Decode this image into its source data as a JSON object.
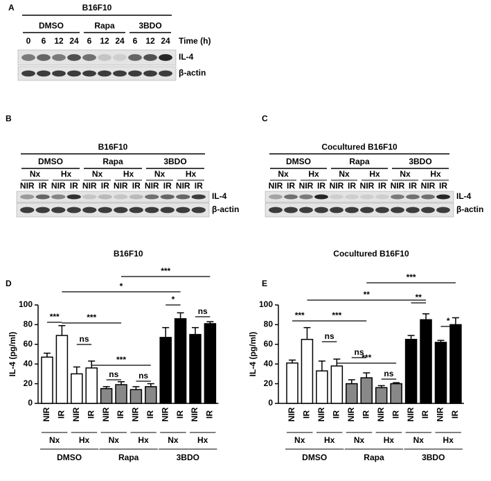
{
  "blots": [
    {
      "panel": "A",
      "title": "B16F10",
      "treatments": [
        "DMSO",
        "Rapa",
        "3BDO"
      ],
      "lanes": [
        "0",
        "6",
        "12",
        "24",
        "6",
        "12",
        "24",
        "6",
        "12",
        "24"
      ],
      "lane_axis": "Time (h)",
      "rows": [
        "IL-4",
        "β-actin"
      ]
    },
    {
      "panel": "B",
      "title": "B16F10",
      "treatments": [
        "DMSO",
        "Rapa",
        "3BDO"
      ],
      "conditions": [
        "Nx",
        "Hx",
        "Nx",
        "Hx",
        "Nx",
        "Hx"
      ],
      "lanes": [
        "NIR",
        "IR",
        "NIR",
        "IR",
        "NIR",
        "IR",
        "NIR",
        "IR",
        "NIR",
        "IR",
        "NIR",
        "IR"
      ],
      "rows": [
        "IL-4",
        "β-actin"
      ]
    },
    {
      "panel": "C",
      "title": "Cocultured B16F10",
      "treatments": [
        "DMSO",
        "Rapa",
        "3BDO"
      ],
      "conditions": [
        "Nx",
        "Hx",
        "Nx",
        "Hx",
        "Nx",
        "Hx"
      ],
      "lanes": [
        "NIR",
        "IR",
        "NIR",
        "IR",
        "NIR",
        "IR",
        "NIR",
        "IR",
        "NIR",
        "IR",
        "NIR",
        "IR"
      ],
      "rows": [
        "IL-4",
        "β-actin"
      ]
    }
  ],
  "chart_data": [
    {
      "type": "bar",
      "panel": "D",
      "title": "B16F10",
      "y_label": "IL-4 (pg/ml)",
      "categories": [
        "NIR",
        "IR",
        "NIR",
        "IR",
        "NIR",
        "IR",
        "NIR",
        "IR",
        "NIR",
        "IR",
        "NIR",
        "IR"
      ],
      "conditions": [
        "Nx",
        "Hx",
        "Nx",
        "Hx",
        "Nx",
        "Hx"
      ],
      "treatments": [
        "DMSO",
        "Rapa",
        "3BDO"
      ],
      "values": [
        47,
        69,
        30,
        36,
        15,
        19,
        14,
        17,
        67,
        86,
        70,
        81
      ],
      "errors": [
        4,
        10,
        7,
        7,
        2,
        3,
        3,
        3,
        10,
        6,
        7,
        2
      ],
      "colors": [
        "#ffffff",
        "#ffffff",
        "#ffffff",
        "#ffffff",
        "#888888",
        "#888888",
        "#888888",
        "#888888",
        "#000000",
        "#000000",
        "#000000",
        "#000000"
      ],
      "ylim": [
        0,
        100
      ],
      "yticks": [
        0,
        20,
        40,
        60,
        80,
        100
      ],
      "brackets": [
        {
          "label": "***",
          "between": [
            0,
            1
          ]
        },
        {
          "label": "***",
          "between": [
            1,
            5
          ]
        },
        {
          "label": "ns",
          "between": [
            2,
            3
          ]
        },
        {
          "label": "***",
          "between": [
            3,
            7
          ]
        },
        {
          "label": "ns",
          "between": [
            4,
            5
          ]
        },
        {
          "label": "ns",
          "between": [
            6,
            7
          ]
        },
        {
          "label": "*",
          "between": [
            8,
            9
          ]
        },
        {
          "label": "ns",
          "between": [
            10,
            11
          ]
        },
        {
          "label": "***",
          "between": [
            5,
            11
          ]
        },
        {
          "label": "*",
          "between": [
            1,
            9
          ]
        }
      ]
    },
    {
      "type": "bar",
      "panel": "E",
      "title": "Cocultured B16F10",
      "y_label": "IL-4 (pg/ml)",
      "categories": [
        "NIR",
        "IR",
        "NIR",
        "IR",
        "NIR",
        "IR",
        "NIR",
        "IR",
        "NIR",
        "IR",
        "NIR",
        "IR"
      ],
      "conditions": [
        "Nx",
        "Hx",
        "Nx",
        "Hx",
        "Nx",
        "Hx"
      ],
      "treatments": [
        "DMSO",
        "Rapa",
        "3BDO"
      ],
      "values": [
        41,
        65,
        33,
        38,
        20,
        26,
        16,
        20,
        65,
        85,
        62,
        80
      ],
      "errors": [
        3,
        12,
        10,
        7,
        4,
        5,
        2,
        1,
        4,
        6,
        2,
        7
      ],
      "colors": [
        "#ffffff",
        "#ffffff",
        "#ffffff",
        "#ffffff",
        "#888888",
        "#888888",
        "#888888",
        "#888888",
        "#000000",
        "#000000",
        "#000000",
        "#000000"
      ],
      "ylim": [
        0,
        100
      ],
      "yticks": [
        0,
        20,
        40,
        60,
        80,
        100
      ],
      "brackets": [
        {
          "label": "***",
          "between": [
            0,
            1
          ]
        },
        {
          "label": "***",
          "between": [
            1,
            5
          ]
        },
        {
          "label": "ns",
          "between": [
            2,
            3
          ]
        },
        {
          "label": "***",
          "between": [
            3,
            7
          ]
        },
        {
          "label": "ns",
          "between": [
            4,
            5
          ]
        },
        {
          "label": "ns",
          "between": [
            6,
            7
          ]
        },
        {
          "label": "**",
          "between": [
            8,
            9
          ]
        },
        {
          "label": "*",
          "between": [
            10,
            11
          ]
        },
        {
          "label": "***",
          "between": [
            5,
            11
          ]
        },
        {
          "label": "**",
          "between": [
            1,
            9
          ]
        }
      ]
    }
  ]
}
